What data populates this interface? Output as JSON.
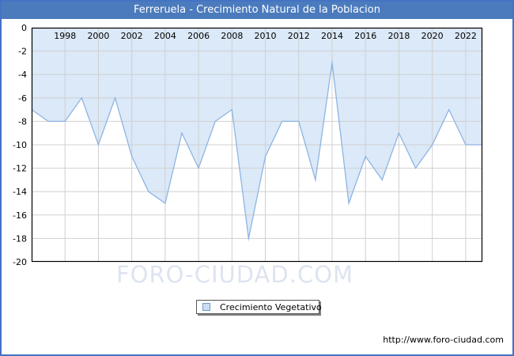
{
  "title": "Ferreruela - Crecimiento Natural de la Poblacion",
  "legend": {
    "label": "Crecimiento Vegetativo"
  },
  "watermark": "FORO-CIUDAD.COM",
  "footer": {
    "url": "http://www.foro-ciudad.com"
  },
  "colors": {
    "frame_border": "#4472c4",
    "titlebar_bg": "#4b7bbd",
    "titlebar_text": "#ffffff",
    "area_fill": "#dbe9f8",
    "line": "#8eb4e3",
    "grid": "#d0d0d0",
    "plot_border": "#000000",
    "tick_text": "#000000",
    "watermark_text": "#c3cfe4",
    "legend_swatch_fill": "#c9def4",
    "legend_swatch_border": "#7096c8"
  },
  "chart_data": {
    "type": "area",
    "title": "Ferreruela - Crecimiento Natural de la Poblacion",
    "xlabel": "",
    "ylabel": "",
    "xlim": [
      1996,
      2023
    ],
    "ylim": [
      -20,
      0
    ],
    "xticks": [
      1998,
      2000,
      2002,
      2004,
      2006,
      2008,
      2010,
      2012,
      2014,
      2016,
      2018,
      2020,
      2022
    ],
    "yticks": [
      0,
      -2,
      -4,
      -6,
      -8,
      -10,
      -12,
      -14,
      -16,
      -18,
      -20
    ],
    "grid": true,
    "legend_position": "bottom",
    "series": [
      {
        "name": "Crecimiento Vegetativo",
        "x": [
          1996,
          1997,
          1998,
          1999,
          2000,
          2001,
          2002,
          2003,
          2004,
          2005,
          2006,
          2007,
          2008,
          2009,
          2010,
          2011,
          2012,
          2013,
          2014,
          2015,
          2016,
          2017,
          2018,
          2019,
          2020,
          2021,
          2022,
          2023
        ],
        "values": [
          -7,
          -8,
          -8,
          -6,
          -10,
          -6,
          -11,
          -14,
          -15,
          -9,
          -12,
          -8,
          -7,
          -18,
          -11,
          -8,
          -8,
          -13,
          -3,
          -15,
          -11,
          -13,
          -9,
          -12,
          -10,
          -7,
          -10,
          -10
        ]
      }
    ]
  }
}
